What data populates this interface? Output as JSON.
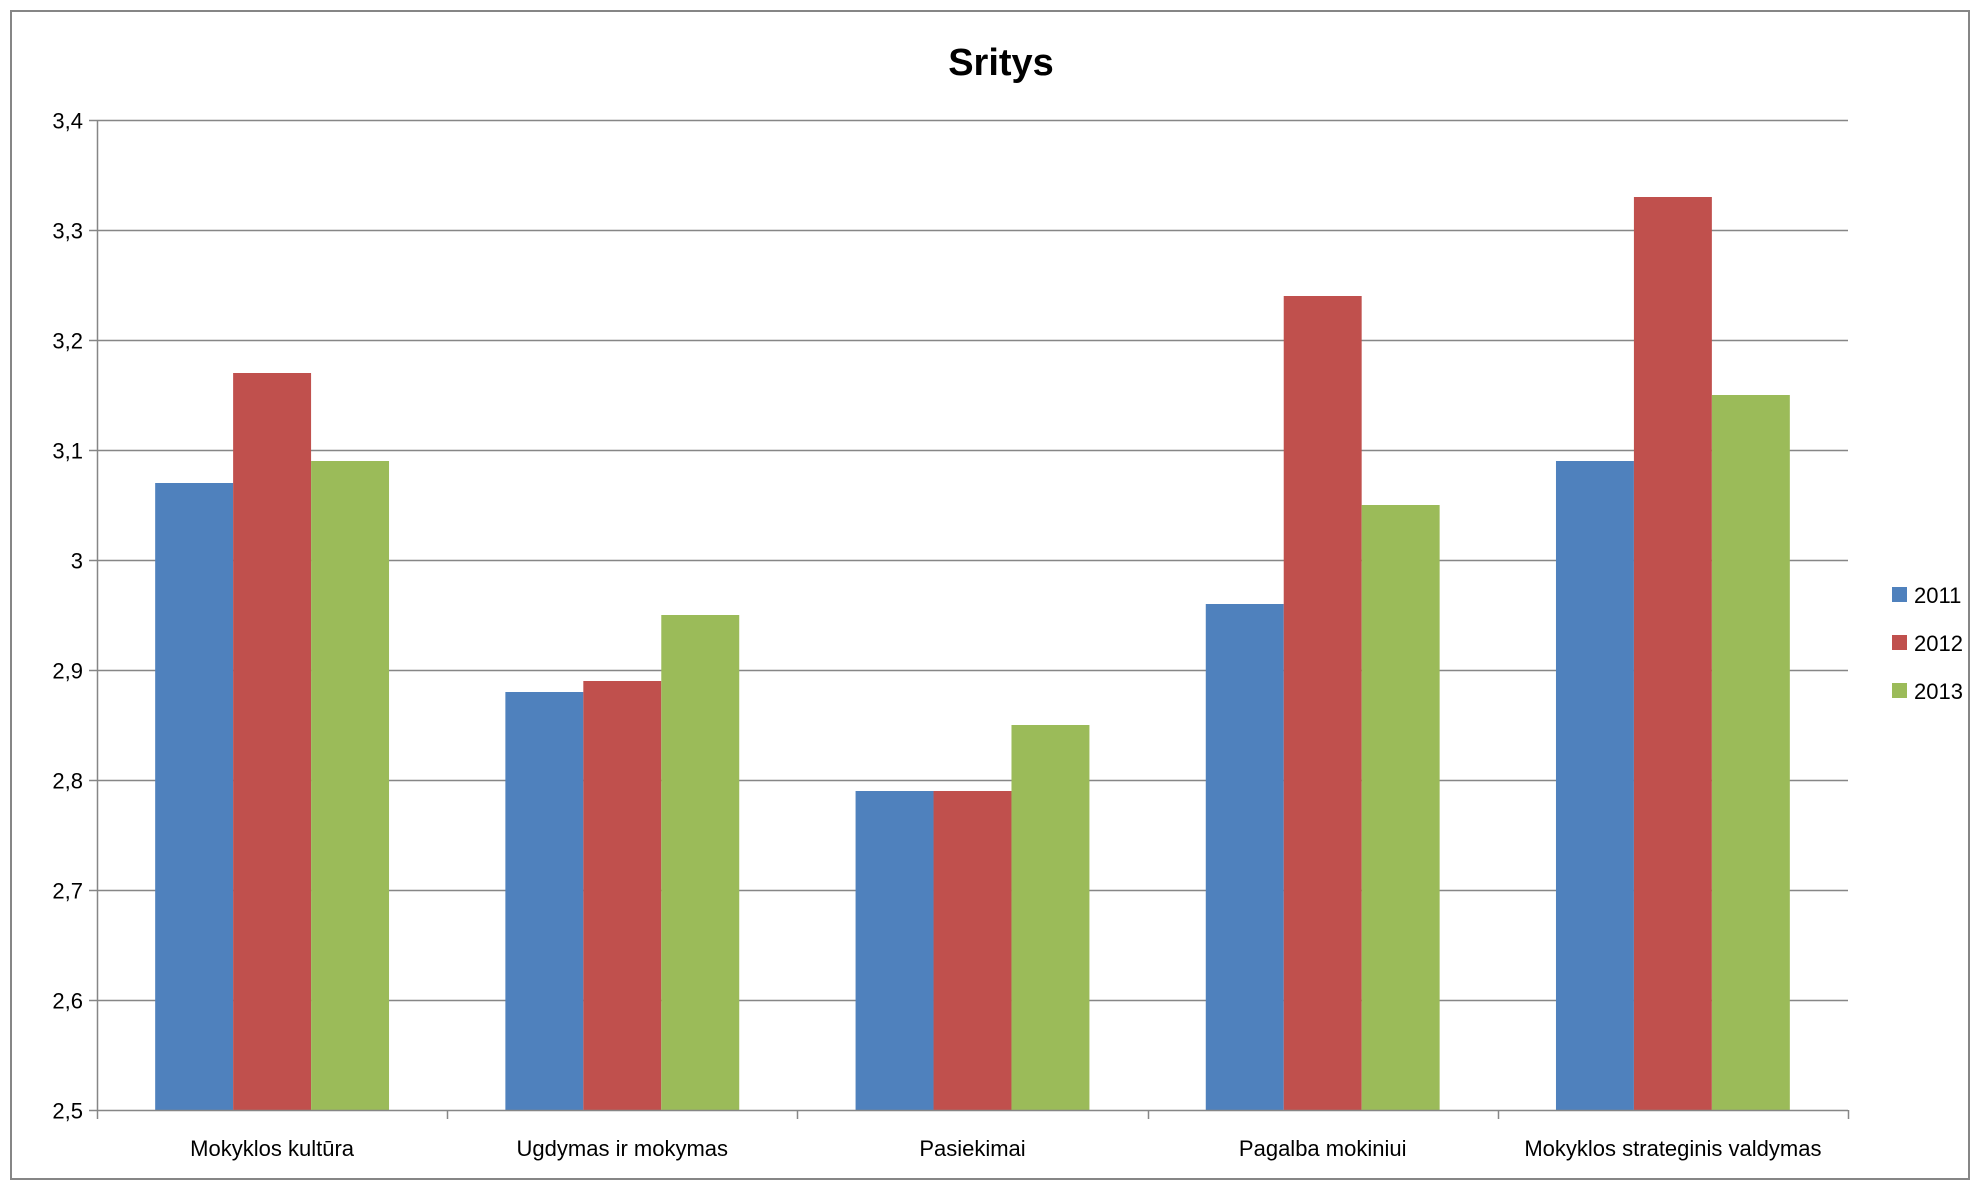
{
  "chart_data": {
    "type": "bar",
    "title": "Sritys",
    "categories": [
      "Mokyklos kultūra",
      "Ugdymas ir mokymas",
      "Pasiekimai",
      "Pagalba mokiniui",
      "Mokyklos strateginis valdymas"
    ],
    "series": [
      {
        "name": "2011",
        "color": "#4F81BD",
        "values": [
          3.07,
          2.88,
          2.79,
          2.96,
          3.09
        ]
      },
      {
        "name": "2012",
        "color": "#C0504D",
        "values": [
          3.17,
          2.89,
          2.79,
          3.24,
          3.33
        ]
      },
      {
        "name": "2013",
        "color": "#9BBB59",
        "values": [
          3.09,
          2.95,
          2.85,
          3.05,
          3.15
        ]
      }
    ],
    "ylim": [
      2.5,
      3.4
    ],
    "yticks": [
      "2,5",
      "2,6",
      "2,7",
      "2,8",
      "2,9",
      "3",
      "3,1",
      "3,2",
      "3,3",
      "3,4"
    ],
    "grid": true,
    "legend_position": "right",
    "xlabel": "",
    "ylabel": ""
  }
}
